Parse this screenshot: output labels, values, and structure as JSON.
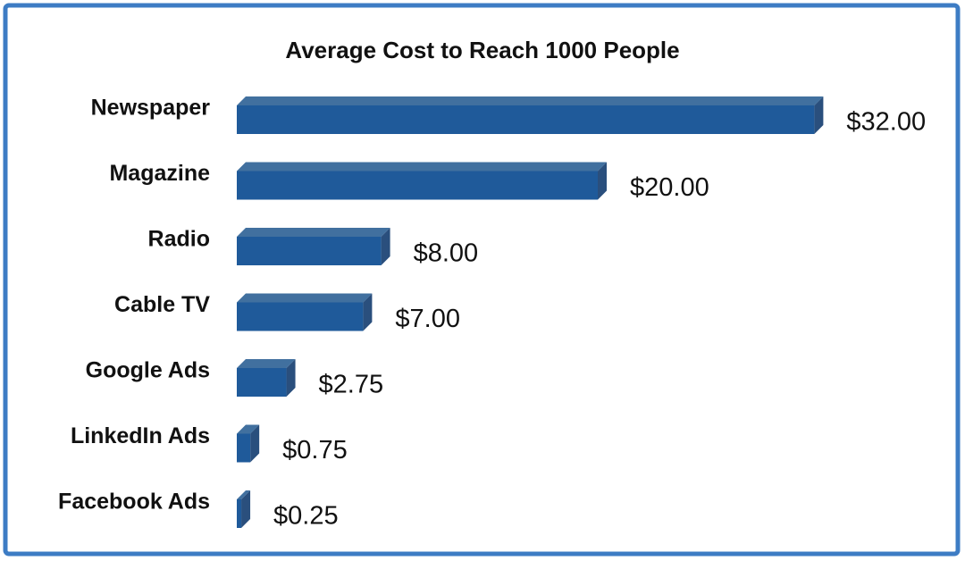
{
  "chart_data": {
    "type": "bar",
    "orientation": "horizontal",
    "title": "Average Cost to Reach 1000 People",
    "categories": [
      "Newspaper",
      "Magazine",
      "Radio",
      "Cable TV",
      "Google Ads",
      "LinkedIn Ads",
      "Facebook Ads"
    ],
    "values": [
      32,
      20,
      8,
      7,
      2.75,
      0.75,
      0.25
    ],
    "value_labels": [
      "$32.00",
      "$20.00",
      "$8.00",
      "$7.00",
      "$2.75",
      "$0.75",
      "$0.25"
    ],
    "color": "#1f5a9a"
  }
}
